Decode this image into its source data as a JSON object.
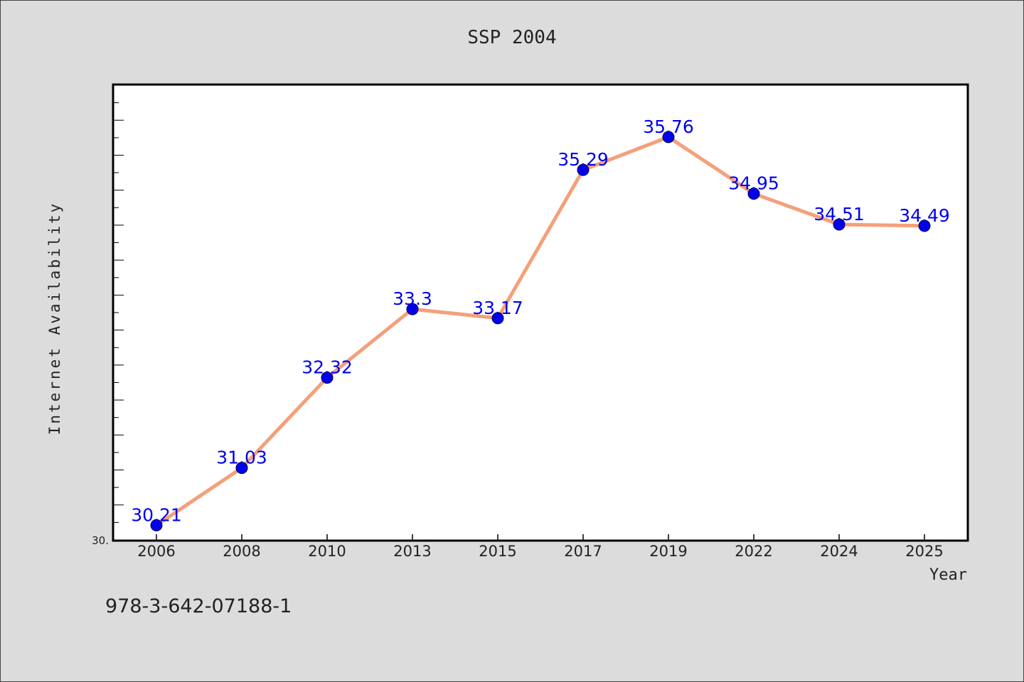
{
  "chart_data": {
    "type": "line",
    "title": "SSP 2004",
    "xlabel": "Year",
    "ylabel": "Internet Availability",
    "categories": [
      "2006",
      "2008",
      "2010",
      "2013",
      "2015",
      "2017",
      "2019",
      "2022",
      "2024",
      "2025"
    ],
    "series": [
      {
        "values": [
          30.21,
          31.03,
          32.32,
          33.3,
          33.17,
          35.29,
          35.76,
          34.95,
          34.51,
          34.49
        ]
      }
    ],
    "y_axis_label_shown": "30.",
    "ylim": [
      30.0,
      36.5
    ],
    "grid": false,
    "line_color": "#f4a07a",
    "marker_color": "#0000ee",
    "label_color": "#0000ee"
  },
  "footer": {
    "isbn": "978-3-642-07188-1"
  }
}
